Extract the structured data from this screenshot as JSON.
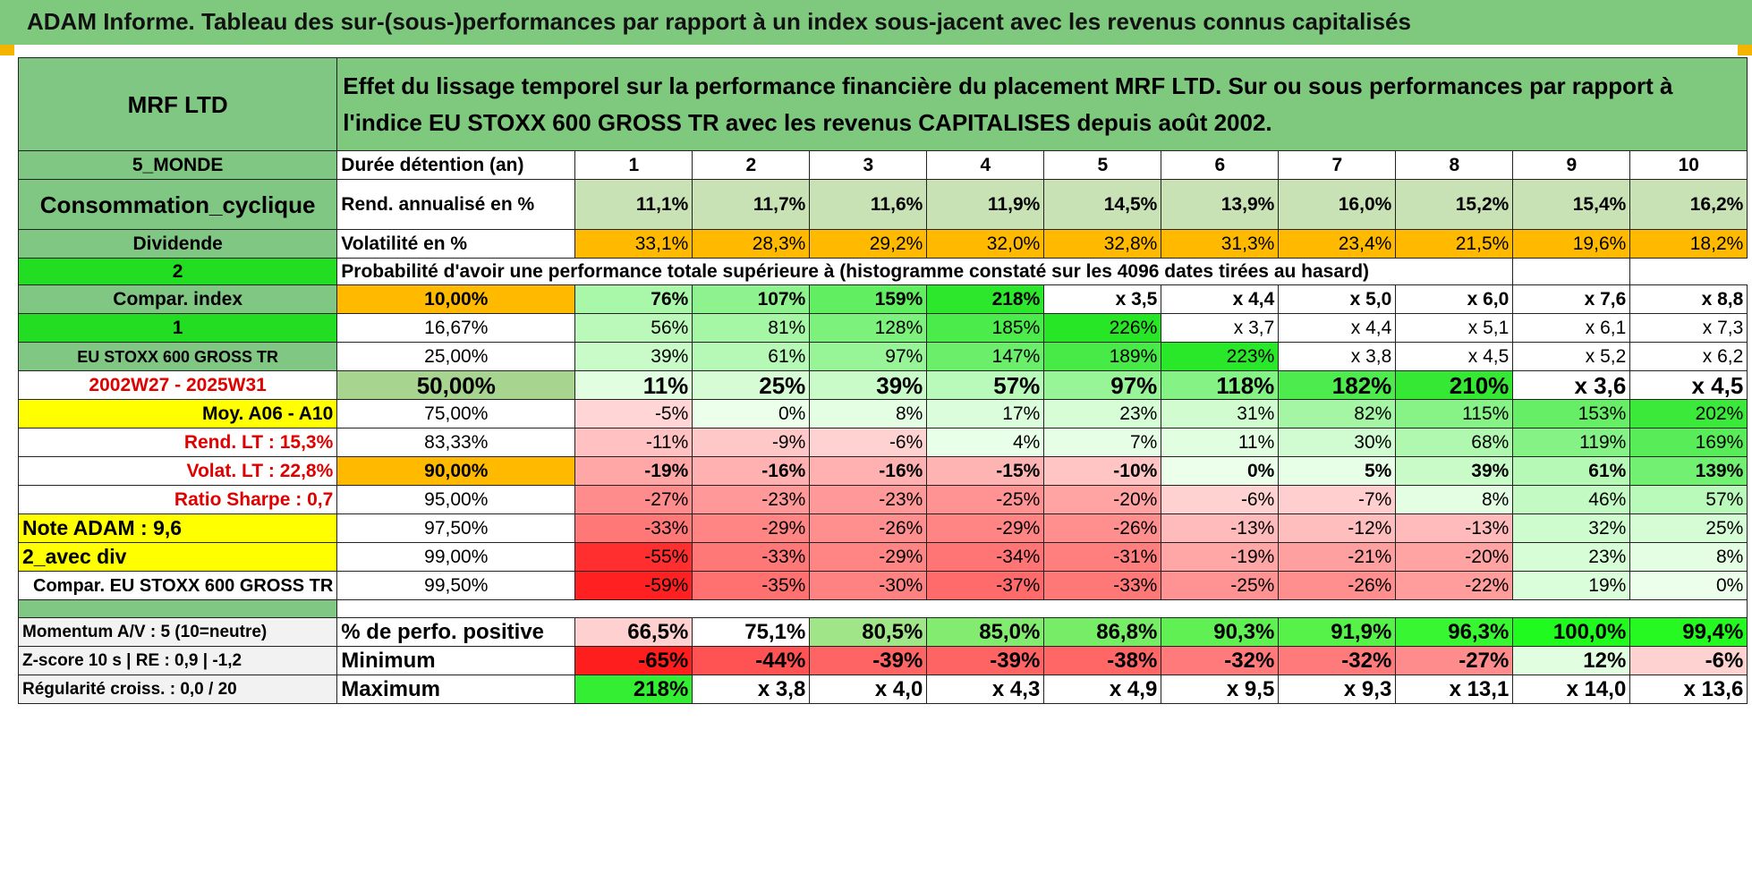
{
  "colors": {
    "header_green": "#7fc97f",
    "label_green": "#80c783",
    "bright_green": "#22dd22",
    "orange": "#ffba00",
    "yellow": "#ffff00",
    "red_text": "#e00000"
  },
  "page_title": "ADAM Informe. Tableau des sur-(sous-)performances par rapport à un index sous-jacent avec les revenus connus capitalisés",
  "fund_name": "MRF LTD",
  "header_description": "Effet du lissage temporel sur la performance financière du placement MRF LTD. Sur ou sous performances par rapport à l'indice EU STOXX 600 GROSS TR avec les revenus CAPITALISES depuis août 2002.",
  "durations": {
    "label": "Durée détention (an)",
    "values": [
      "1",
      "2",
      "3",
      "4",
      "5",
      "6",
      "7",
      "8",
      "9",
      "10"
    ]
  },
  "rend": {
    "label": "Rend. annualisé en %",
    "values": [
      "11,1%",
      "11,7%",
      "11,6%",
      "11,9%",
      "14,5%",
      "13,9%",
      "16,0%",
      "15,2%",
      "15,4%",
      "16,2%"
    ]
  },
  "vol": {
    "label": "Volatilité en %",
    "values": [
      "33,1%",
      "28,3%",
      "29,2%",
      "32,0%",
      "32,8%",
      "31,3%",
      "23,4%",
      "21,5%",
      "19,6%",
      "18,2%"
    ]
  },
  "prob_header": "Probabilité d'avoir une performance totale supérieure à (histogramme constaté sur les 4096 dates tirées au hasard)",
  "left_labels": {
    "region": "5_MONDE",
    "sector": "Consommation_cyclique",
    "style": "Dividende",
    "num2": "2",
    "compar_index": "Compar. index",
    "num1": "1",
    "index_name": "EU STOXX 600 GROSS TR",
    "period": "2002W27 - 2025W31",
    "moy": "Moy. A06 - A10",
    "rend_lt": "Rend. LT :   15,3%",
    "volat_lt": "Volat. LT :   22,8%",
    "sharpe": "Ratio Sharpe :    0,7",
    "note": "Note ADAM : 9,6",
    "avec_div": "2_avec div",
    "compar_full": "Compar. EU STOXX 600 GROSS TR"
  },
  "quantile_rows": [
    {
      "q": "10,00%",
      "values": [
        "76%",
        "107%",
        "159%",
        "218%",
        "x 3,5",
        "x 4,4",
        "x 5,0",
        "x 6,0",
        "x 7,6",
        "x 8,8"
      ]
    },
    {
      "q": "16,67%",
      "values": [
        "56%",
        "81%",
        "128%",
        "185%",
        "226%",
        "x 3,7",
        "x 4,4",
        "x 5,1",
        "x 6,1",
        "x 7,3"
      ]
    },
    {
      "q": "25,00%",
      "values": [
        "39%",
        "61%",
        "97%",
        "147%",
        "189%",
        "223%",
        "x 3,8",
        "x 4,5",
        "x 5,2",
        "x 6,2"
      ]
    },
    {
      "q": "50,00%",
      "values": [
        "11%",
        "25%",
        "39%",
        "57%",
        "97%",
        "118%",
        "182%",
        "210%",
        "x 3,6",
        "x 4,5"
      ]
    },
    {
      "q": "75,00%",
      "values": [
        "-5%",
        "0%",
        "8%",
        "17%",
        "23%",
        "31%",
        "82%",
        "115%",
        "153%",
        "202%"
      ]
    },
    {
      "q": "83,33%",
      "values": [
        "-11%",
        "-9%",
        "-6%",
        "4%",
        "7%",
        "11%",
        "30%",
        "68%",
        "119%",
        "169%"
      ]
    },
    {
      "q": "90,00%",
      "values": [
        "-19%",
        "-16%",
        "-16%",
        "-15%",
        "-10%",
        "0%",
        "5%",
        "39%",
        "61%",
        "139%"
      ]
    },
    {
      "q": "95,00%",
      "values": [
        "-27%",
        "-23%",
        "-23%",
        "-25%",
        "-20%",
        "-6%",
        "-7%",
        "8%",
        "46%",
        "57%"
      ]
    },
    {
      "q": "97,50%",
      "values": [
        "-33%",
        "-29%",
        "-26%",
        "-29%",
        "-26%",
        "-13%",
        "-12%",
        "-13%",
        "32%",
        "25%"
      ]
    },
    {
      "q": "99,00%",
      "values": [
        "-55%",
        "-33%",
        "-29%",
        "-34%",
        "-31%",
        "-19%",
        "-21%",
        "-20%",
        "23%",
        "8%"
      ]
    },
    {
      "q": "99,50%",
      "values": [
        "-59%",
        "-35%",
        "-30%",
        "-37%",
        "-33%",
        "-25%",
        "-26%",
        "-22%",
        "19%",
        "0%"
      ]
    }
  ],
  "bottom_rows": [
    {
      "left": "Momentum A/V : 5 (10=neutre)",
      "label": "% de perfo. positive",
      "values": [
        "66,5%",
        "75,1%",
        "80,5%",
        "85,0%",
        "86,8%",
        "90,3%",
        "91,9%",
        "96,3%",
        "100,0%",
        "99,4%"
      ]
    },
    {
      "left": "Z-score 10 s | RE : 0,9 | -1,2",
      "label": "Minimum",
      "values": [
        "-65%",
        "-44%",
        "-39%",
        "-39%",
        "-38%",
        "-32%",
        "-32%",
        "-27%",
        "12%",
        "-6%"
      ]
    },
    {
      "left": "Régularité croiss. : 0,0 / 20",
      "label": "Maximum",
      "values": [
        "218%",
        "x 3,8",
        "x 4,0",
        "x 4,3",
        "x 4,9",
        "x 9,5",
        "x 9,3",
        "x 13,1",
        "x 14,0",
        "x 13,6"
      ]
    }
  ]
}
